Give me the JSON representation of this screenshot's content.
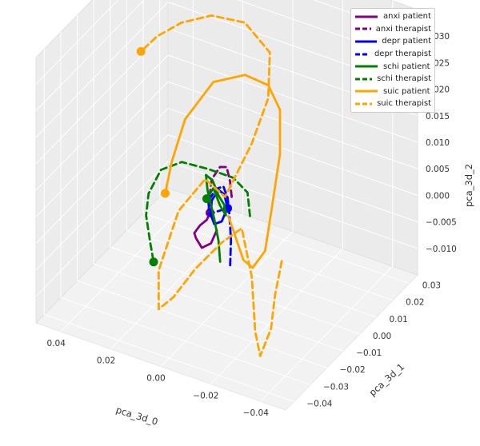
{
  "chart_data": {
    "type": "line",
    "projection": "3d",
    "xlabel": "pca_3d_0",
    "ylabel": "pca_3d_1",
    "zlabel": "pca_3d_2",
    "xlim": [
      -0.05,
      0.05
    ],
    "ylim": [
      -0.045,
      0.035
    ],
    "zlim": [
      -0.015,
      0.035
    ],
    "x_ticks": [
      "−0.04",
      "−0.02",
      "0.00",
      "0.02",
      "0.04"
    ],
    "y_ticks": [
      "−0.04",
      "−0.03",
      "−0.02",
      "−0.01",
      "0.00",
      "0.01",
      "0.02",
      "0.03"
    ],
    "z_ticks": [
      "−0.010",
      "−0.005",
      "0.000",
      "0.005",
      "0.010",
      "0.015",
      "0.020",
      "0.025",
      "0.030"
    ],
    "grid": true,
    "legend_position": "top-right",
    "series": [
      {
        "name": "anxi patient",
        "color": "#800080",
        "style": "solid",
        "points": [
          [
            0.006,
            -0.002,
            -0.004
          ],
          [
            0.007,
            -0.004,
            -0.006
          ],
          [
            0.01,
            -0.005,
            -0.007
          ],
          [
            0.013,
            -0.004,
            -0.006
          ],
          [
            0.015,
            -0.002,
            -0.006
          ],
          [
            0.014,
            0.0,
            -0.005
          ],
          [
            0.012,
            0.001,
            -0.004
          ],
          [
            0.01,
            0.0,
            -0.002
          ]
        ]
      },
      {
        "name": "anxi therapist",
        "color": "#800080",
        "style": "dashed",
        "points": [
          [
            0.002,
            0.001,
            0.002
          ],
          [
            0.004,
            0.003,
            0.004
          ],
          [
            0.006,
            0.004,
            0.006
          ],
          [
            0.008,
            0.003,
            0.006
          ],
          [
            0.01,
            0.001,
            0.004
          ],
          [
            0.01,
            -0.001,
            0.0
          ],
          [
            0.01,
            0.0,
            -0.002
          ]
        ]
      },
      {
        "name": "depr patient",
        "color": "#0000ff",
        "style": "solid",
        "points": [
          [
            0.002,
            -0.001,
            0.001
          ],
          [
            0.004,
            -0.002,
            -0.002
          ],
          [
            0.007,
            -0.002,
            -0.003
          ],
          [
            0.009,
            -0.001,
            -0.002
          ],
          [
            0.01,
            0.001,
            0.0
          ],
          [
            0.008,
            0.002,
            0.002
          ],
          [
            0.005,
            0.001,
            0.002
          ],
          [
            0.003,
            0.0,
            0.0
          ]
        ]
      },
      {
        "name": "depr therapist",
        "color": "#0000ff",
        "style": "dashed",
        "points": [
          [
            -0.002,
            -0.006,
            -0.008
          ],
          [
            -0.001,
            -0.004,
            -0.004
          ],
          [
            0.001,
            -0.002,
            0.0
          ],
          [
            0.003,
            0.0,
            0.002
          ],
          [
            0.006,
            0.002,
            0.003
          ],
          [
            0.009,
            0.002,
            0.002
          ],
          [
            0.011,
            0.001,
            0.0
          ],
          [
            0.01,
            -0.001,
            -0.002
          ],
          [
            0.007,
            -0.001,
            -0.001
          ],
          [
            0.003,
            0.0,
            0.0
          ]
        ]
      },
      {
        "name": "schi patient",
        "color": "#008000",
        "style": "solid",
        "points": [
          [
            0.002,
            -0.006,
            -0.008
          ],
          [
            0.004,
            -0.004,
            -0.005
          ],
          [
            0.007,
            -0.002,
            -0.002
          ],
          [
            0.011,
            0.0,
            0.002
          ],
          [
            0.013,
            0.002,
            0.004
          ],
          [
            0.011,
            0.003,
            0.003
          ],
          [
            0.008,
            0.002,
            0.001
          ],
          [
            0.005,
            0.001,
            0.0
          ],
          [
            0.003,
            -0.001,
            -0.001
          ],
          [
            0.006,
            0.0,
            0.0
          ],
          [
            0.01,
            0.002,
            0.002
          ],
          [
            0.012,
            0.001,
            0.0
          ]
        ]
      },
      {
        "name": "schi therapist",
        "color": "#008000",
        "style": "dashed",
        "points": [
          [
            -0.006,
            0.0,
            0.0
          ],
          [
            -0.003,
            0.003,
            0.003
          ],
          [
            0.004,
            0.005,
            0.004
          ],
          [
            0.014,
            0.005,
            0.004
          ],
          [
            0.024,
            0.004,
            0.004
          ],
          [
            0.031,
            0.002,
            0.002
          ],
          [
            0.034,
            -0.001,
            -0.002
          ],
          [
            0.033,
            -0.004,
            -0.005
          ],
          [
            0.03,
            -0.006,
            -0.009
          ],
          [
            0.028,
            -0.007,
            -0.012
          ]
        ]
      },
      {
        "name": "suic patient",
        "color": "#ffa500",
        "style": "solid",
        "points": [
          [
            0.002,
            -0.001,
            -0.001
          ],
          [
            -0.006,
            -0.004,
            -0.007
          ],
          [
            -0.011,
            -0.006,
            -0.007
          ],
          [
            -0.016,
            -0.006,
            -0.003
          ],
          [
            -0.018,
            -0.005,
            0.005
          ],
          [
            -0.02,
            -0.003,
            0.015
          ],
          [
            -0.018,
            0.0,
            0.022
          ],
          [
            -0.012,
            0.002,
            0.025
          ],
          [
            -0.002,
            0.003,
            0.025
          ],
          [
            0.01,
            0.002,
            0.022
          ],
          [
            0.02,
            0.0,
            0.014
          ],
          [
            0.024,
            -0.002,
            0.006
          ],
          [
            0.026,
            -0.003,
            0.0
          ]
        ]
      },
      {
        "name": "suic therapist",
        "color": "#ffa500",
        "style": "dashed",
        "points": [
          [
            -0.024,
            -0.008,
            -0.003
          ],
          [
            -0.024,
            -0.012,
            -0.008
          ],
          [
            -0.025,
            -0.016,
            -0.013
          ],
          [
            -0.022,
            -0.018,
            -0.018
          ],
          [
            -0.018,
            -0.015,
            -0.015
          ],
          [
            -0.012,
            -0.008,
            -0.008
          ],
          [
            -0.004,
            -0.002,
            -0.002
          ],
          [
            0.004,
            -0.002,
            -0.006
          ],
          [
            0.012,
            -0.006,
            -0.011
          ],
          [
            0.018,
            -0.01,
            -0.016
          ],
          [
            0.022,
            -0.013,
            -0.018
          ],
          [
            0.024,
            -0.01,
            -0.012
          ],
          [
            0.02,
            -0.004,
            -0.002
          ],
          [
            0.012,
            0.0,
            0.004
          ],
          [
            0.004,
            0.0,
            0.002
          ],
          [
            -0.004,
            0.004,
            0.012
          ],
          [
            -0.008,
            0.008,
            0.02
          ],
          [
            -0.006,
            0.012,
            0.027
          ],
          [
            0.004,
            0.012,
            0.031
          ],
          [
            0.016,
            0.01,
            0.031
          ],
          [
            0.026,
            0.007,
            0.029
          ],
          [
            0.034,
            0.004,
            0.026
          ],
          [
            0.039,
            0.002,
            0.023
          ]
        ]
      }
    ]
  }
}
